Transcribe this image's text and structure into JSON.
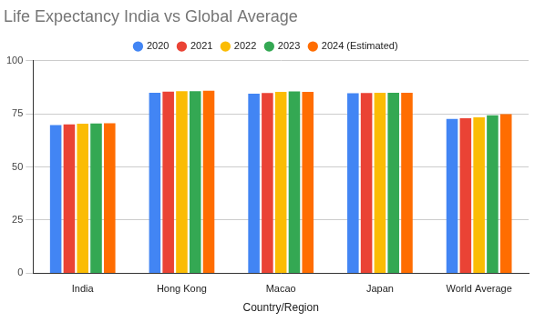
{
  "chart_data": {
    "type": "bar",
    "title": "Life Expectancy India vs Global Average",
    "x_label": "Country/Region",
    "categories": [
      "India",
      "Hong Kong",
      "Macao",
      "Japan",
      "World Average"
    ],
    "series": [
      {
        "name": "2020",
        "color": "#4285f4",
        "values": [
          69.7,
          84.9,
          84.4,
          84.6,
          72.6
        ]
      },
      {
        "name": "2021",
        "color": "#ea4335",
        "values": [
          70.0,
          85.4,
          84.7,
          84.8,
          72.9
        ]
      },
      {
        "name": "2022",
        "color": "#fbbc04",
        "values": [
          70.3,
          85.6,
          85.3,
          84.9,
          73.3
        ]
      },
      {
        "name": "2023",
        "color": "#34a853",
        "values": [
          70.4,
          85.6,
          85.5,
          84.9,
          74.3
        ]
      },
      {
        "name": "2024 (Estimated)",
        "color": "#ff6d01",
        "values": [
          70.5,
          85.8,
          85.3,
          84.9,
          74.8
        ]
      }
    ],
    "ylim": [
      0,
      100
    ],
    "yticks": [
      0,
      25,
      50,
      75,
      100
    ],
    "grid": true,
    "legend": "top"
  }
}
